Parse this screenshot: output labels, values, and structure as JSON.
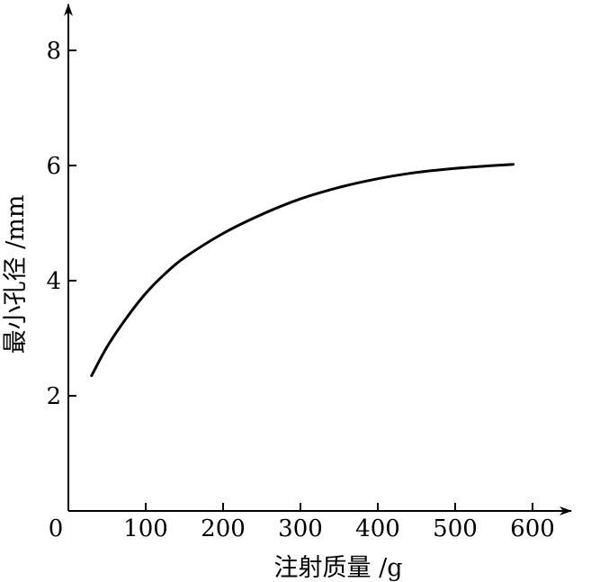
{
  "chart_data": {
    "type": "line",
    "title": "",
    "xlabel": "注射质量 /g",
    "ylabel": "最小孔径 /mm",
    "origin_label": "0",
    "xlim": [
      0,
      650
    ],
    "ylim": [
      0,
      8.8
    ],
    "x_ticks": [
      100,
      200,
      300,
      400,
      500,
      600
    ],
    "x_tick_labels": [
      "100",
      "200",
      "300",
      "400",
      "500",
      "600"
    ],
    "y_ticks": [
      2,
      4,
      6,
      8
    ],
    "y_tick_labels": [
      "2",
      "4",
      "6",
      "8"
    ],
    "grid": false,
    "legend": "none",
    "series": [
      {
        "x": [
          30,
          50,
          75,
          100,
          125,
          150,
          200,
          250,
          300,
          350,
          400,
          450,
          500,
          550,
          575
        ],
        "y": [
          2.35,
          2.85,
          3.35,
          3.78,
          4.12,
          4.4,
          4.82,
          5.15,
          5.42,
          5.62,
          5.77,
          5.88,
          5.95,
          6.0,
          6.02
        ]
      }
    ]
  }
}
